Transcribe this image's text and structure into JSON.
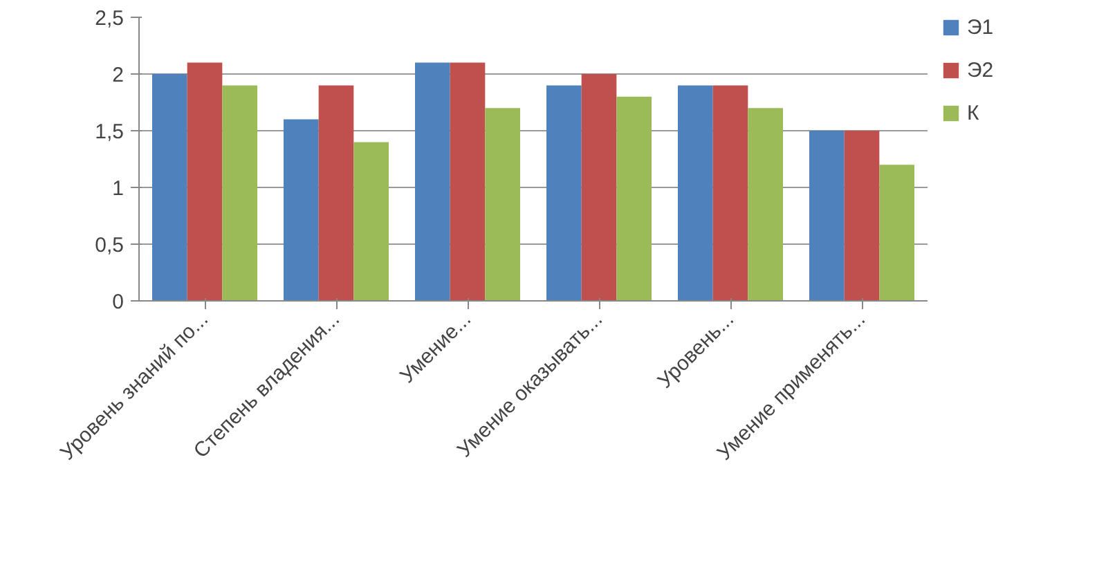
{
  "chart_data": {
    "type": "bar",
    "categories": [
      "Уровень знаний по...",
      "Степень владения...",
      "Умение...",
      "Умение оказывать...",
      "Уровень...",
      "Умение применять..."
    ],
    "series": [
      {
        "name": "Э1",
        "color": "#4f81bd",
        "values": [
          2.0,
          1.6,
          2.1,
          1.9,
          1.9,
          1.5
        ]
      },
      {
        "name": "Э2",
        "color": "#c0504d",
        "values": [
          2.1,
          1.9,
          2.1,
          2.0,
          1.9,
          1.5
        ]
      },
      {
        "name": "К",
        "color": "#9bbb59",
        "values": [
          1.9,
          1.4,
          1.7,
          1.8,
          1.7,
          1.2
        ]
      }
    ],
    "ylim": [
      0,
      2.5
    ],
    "yticks": [
      0,
      {
        "value": 0.5,
        "label": "0,5"
      },
      1,
      {
        "value": 1.5,
        "label": "1,5"
      },
      2,
      {
        "value": 2.5,
        "label": "2,5"
      }
    ],
    "grid": "y",
    "legend": "right"
  }
}
